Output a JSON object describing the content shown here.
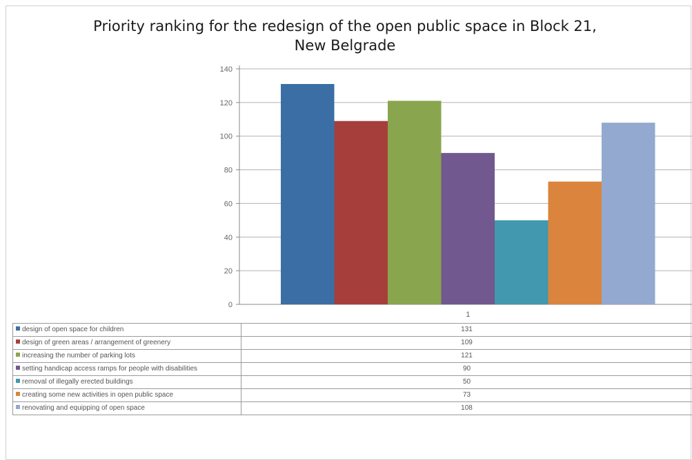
{
  "chart_data": {
    "type": "bar",
    "title": "Priority ranking for the redesign of the open public space in Block 21, New Belgrade",
    "title_lines": [
      "Priority ranking for the redesign of the open public space in Block 21,",
      "New Belgrade"
    ],
    "categories": [
      "1"
    ],
    "series": [
      {
        "name": "design of open space for children",
        "values": [
          131
        ],
        "color": "#3A6EA5"
      },
      {
        "name": "design of green areas / arrangement of greenery",
        "values": [
          109
        ],
        "color": "#A63F3C"
      },
      {
        "name": "increasing the number of parking lots",
        "values": [
          121
        ],
        "color": "#89A54E"
      },
      {
        "name": "setting handicap access ramps for people with disabilities",
        "values": [
          90
        ],
        "color": "#71588F"
      },
      {
        "name": "removal of illegally erected buildings",
        "values": [
          50
        ],
        "color": "#4198AF"
      },
      {
        "name": "creating some new activities in open public space",
        "values": [
          73
        ],
        "color": "#DB843D"
      },
      {
        "name": "renovating and equipping of open space",
        "values": [
          108
        ],
        "color": "#93A9CF"
      }
    ],
    "yticks": [
      "0",
      "20",
      "40",
      "60",
      "80",
      "100",
      "120",
      "140"
    ],
    "ylim": [
      0,
      140
    ],
    "grid": true,
    "legend": "data table below chart"
  },
  "table": {
    "rows": [
      {
        "label": "design of open space for children",
        "value": "131"
      },
      {
        "label": "design of green areas / arrangement of greenery",
        "value": "109"
      },
      {
        "label": "increasing the number of parking lots",
        "value": "121"
      },
      {
        "label": "setting handicap access ramps for people with disabilities",
        "value": "90"
      },
      {
        "label": "removal of illegally erected buildings",
        "value": "50"
      },
      {
        "label": "creating some new activities in open public space",
        "value": "73"
      },
      {
        "label": "renovating and equipping of open space",
        "value": "108"
      }
    ]
  }
}
